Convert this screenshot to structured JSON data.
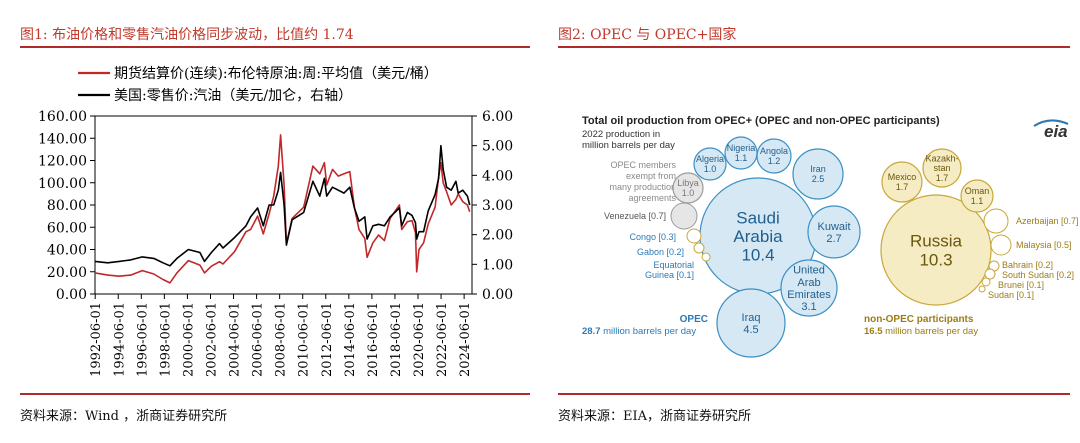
{
  "colors": {
    "title_red": "#c0392b",
    "rule_red": "#b02a2a",
    "brent": "#c0282a",
    "gasoline": "#000000",
    "opec_fill": "#d6e8f4",
    "opec_stroke": "#3a8fc4",
    "opec_text": "#2b7ab5",
    "nonopec_fill": "#f6ecc3",
    "nonopec_stroke": "#c9a73a",
    "nonopec_text": "#9c7d14"
  },
  "left": {
    "title": "图1:  布油价格和零售汽油价格同步波动，比值约 1.74",
    "source": "资料来源：Wind ，浙商证券研究所"
  },
  "right": {
    "title": "图2:  OPEC 与 OPEC+国家",
    "source": "资料来源：EIA，浙商证券研究所"
  },
  "chart_data": [
    {
      "type": "line",
      "series": [
        {
          "name": "期货结算价(连续):布伦特原油:周:平均值（美元/桶）",
          "axis": "left",
          "color": "#c0282a",
          "x": [
            1992.4,
            1993.5,
            1994.5,
            1995.5,
            1996.5,
            1997.5,
            1998.3,
            1998.9,
            1999.5,
            2000.5,
            2001.5,
            2001.9,
            2002.5,
            2003.2,
            2003.5,
            2004.5,
            2005.5,
            2005.9,
            2006.5,
            2007.0,
            2007.5,
            2007.9,
            2008.3,
            2008.5,
            2008.8,
            2009.0,
            2009.5,
            2010.5,
            2011.3,
            2011.9,
            2012.3,
            2012.5,
            2013.0,
            2013.5,
            2014.0,
            2014.5,
            2014.9,
            2015.3,
            2015.8,
            2016.0,
            2016.5,
            2017.0,
            2017.5,
            2018.0,
            2018.8,
            2019.0,
            2019.5,
            2019.9,
            2020.2,
            2020.3,
            2020.5,
            2020.9,
            2021.3,
            2021.9,
            2022.2,
            2022.4,
            2022.6,
            2022.9,
            2023.3,
            2023.7,
            2023.9,
            2024.3,
            2024.7,
            2024.9
          ],
          "values": [
            19,
            17,
            16,
            17,
            21,
            18,
            13,
            10,
            19,
            30,
            26,
            19,
            25,
            29,
            27,
            38,
            56,
            58,
            70,
            54,
            72,
            88,
            115,
            143,
            98,
            45,
            68,
            78,
            115,
            108,
            118,
            98,
            112,
            106,
            108,
            110,
            78,
            58,
            50,
            33,
            46,
            53,
            48,
            68,
            80,
            58,
            65,
            66,
            55,
            20,
            40,
            46,
            63,
            78,
            105,
            118,
            100,
            92,
            80,
            85,
            90,
            83,
            80,
            74
          ]
        },
        {
          "name": "美国:零售价:汽油（美元/加仑，右轴）",
          "axis": "right",
          "color": "#000000",
          "x": [
            1992.4,
            1993.5,
            1994.5,
            1995.5,
            1996.5,
            1997.5,
            1998.3,
            1998.9,
            1999.5,
            2000.5,
            2001.5,
            2001.9,
            2002.5,
            2003.2,
            2003.5,
            2004.5,
            2005.5,
            2005.9,
            2006.5,
            2007.0,
            2007.5,
            2007.9,
            2008.3,
            2008.5,
            2008.8,
            2009.0,
            2009.5,
            2010.5,
            2011.3,
            2011.9,
            2012.3,
            2012.5,
            2013.0,
            2013.5,
            2014.0,
            2014.5,
            2014.9,
            2015.3,
            2015.8,
            2016.0,
            2016.5,
            2017.0,
            2017.5,
            2018.0,
            2018.8,
            2019.0,
            2019.5,
            2019.9,
            2020.2,
            2020.3,
            2020.5,
            2020.9,
            2021.3,
            2021.9,
            2022.2,
            2022.4,
            2022.6,
            2022.9,
            2023.3,
            2023.7,
            2023.9,
            2024.3,
            2024.7,
            2024.9
          ],
          "values": [
            1.1,
            1.05,
            1.1,
            1.15,
            1.25,
            1.2,
            1.05,
            0.95,
            1.2,
            1.5,
            1.4,
            1.1,
            1.4,
            1.7,
            1.55,
            1.9,
            2.3,
            2.6,
            2.9,
            2.3,
            3.0,
            3.0,
            3.5,
            4.1,
            3.0,
            1.65,
            2.5,
            2.75,
            3.8,
            3.3,
            3.9,
            3.3,
            3.6,
            3.5,
            3.4,
            3.6,
            2.9,
            2.45,
            2.6,
            1.85,
            2.3,
            2.35,
            2.3,
            2.6,
            2.9,
            2.3,
            2.75,
            2.65,
            2.4,
            1.85,
            2.1,
            2.1,
            2.8,
            3.35,
            3.9,
            5.0,
            4.2,
            3.6,
            3.5,
            3.8,
            3.4,
            3.5,
            3.3,
            3.0
          ]
        }
      ],
      "ylim": [
        0,
        160
      ],
      "yticks": [
        "0.00",
        "20.00",
        "40.00",
        "60.00",
        "80.00",
        "100.00",
        "120.00",
        "140.00",
        "160.00"
      ],
      "y2lim": [
        0,
        6
      ],
      "y2ticks": [
        "0.00",
        "1.00",
        "2.00",
        "3.00",
        "4.00",
        "5.00",
        "6.00"
      ],
      "xlim": [
        1992.4,
        2025.1
      ],
      "xticks": [
        "1992-06-01",
        "1994-06-01",
        "1996-06-01",
        "1998-06-01",
        "2000-06-01",
        "2002-06-01",
        "2004-06-01",
        "2006-06-01",
        "2008-06-01",
        "2010-06-01",
        "2012-06-01",
        "2014-06-01",
        "2016-06-01",
        "2018-06-01",
        "2020-06-01",
        "2022-06-01",
        "2024-06-01"
      ],
      "legend": "top-left",
      "grid": false
    },
    {
      "type": "bubble",
      "title": "Total oil production from OPEC+ (OPEC and non-OPEC participants)",
      "subtitle": [
        "2022 production in",
        "million barrels per day"
      ],
      "logo": "eia",
      "exempt_note": [
        "OPEC members",
        "exempt from",
        "many production",
        "agreements"
      ],
      "opec_members": [
        {
          "name": [
            "Saudi",
            "Arabia"
          ],
          "value": "10.4"
        },
        {
          "name": [
            "Iraq"
          ],
          "value": "4.5"
        },
        {
          "name": [
            "United",
            "Arab",
            "Emirates"
          ],
          "value": "3.1"
        },
        {
          "name": [
            "Kuwait"
          ],
          "value": "2.7"
        },
        {
          "name": [
            "Iran"
          ],
          "value": "2.5"
        },
        {
          "name": [
            "Nigeria"
          ],
          "value": "1.1"
        },
        {
          "name": [
            "Angola"
          ],
          "value": "1.2"
        },
        {
          "name": [
            "Algeria"
          ],
          "value": "1.0"
        },
        {
          "name": [
            "Libya"
          ],
          "value": "1.0"
        },
        {
          "name": [
            "Venezuela [0.7]"
          ],
          "value": ""
        },
        {
          "name": [
            "Congo [0.3]"
          ],
          "value": ""
        },
        {
          "name": [
            "Gabon [0.2]"
          ],
          "value": ""
        },
        {
          "name": [
            "Equatorial",
            "Guinea [0.1]"
          ],
          "value": ""
        }
      ],
      "non_opec": [
        {
          "name": [
            "Russia"
          ],
          "value": "10.3"
        },
        {
          "name": [
            "Mexico"
          ],
          "value": "1.7"
        },
        {
          "name": [
            "Kazakh-",
            "stan"
          ],
          "value": "1.7"
        },
        {
          "name": [
            "Oman"
          ],
          "value": "1.1"
        },
        {
          "name": [
            "Azerbaijan [0.7]"
          ],
          "value": ""
        },
        {
          "name": [
            "Malaysia [0.5]"
          ],
          "value": ""
        },
        {
          "name": [
            "Bahrain [0.2]"
          ],
          "value": ""
        },
        {
          "name": [
            "South Sudan [0.2]"
          ],
          "value": ""
        },
        {
          "name": [
            "Brunei [0.1]"
          ],
          "value": ""
        },
        {
          "name": [
            "Sudan [0.1]"
          ],
          "value": ""
        }
      ],
      "opec_total": {
        "label": "OPEC",
        "value": "28.7",
        "unit": "million barrels per day"
      },
      "non_opec_total": {
        "label": "non-OPEC participants",
        "value": "16.5",
        "unit": "million barrels per day"
      }
    }
  ]
}
